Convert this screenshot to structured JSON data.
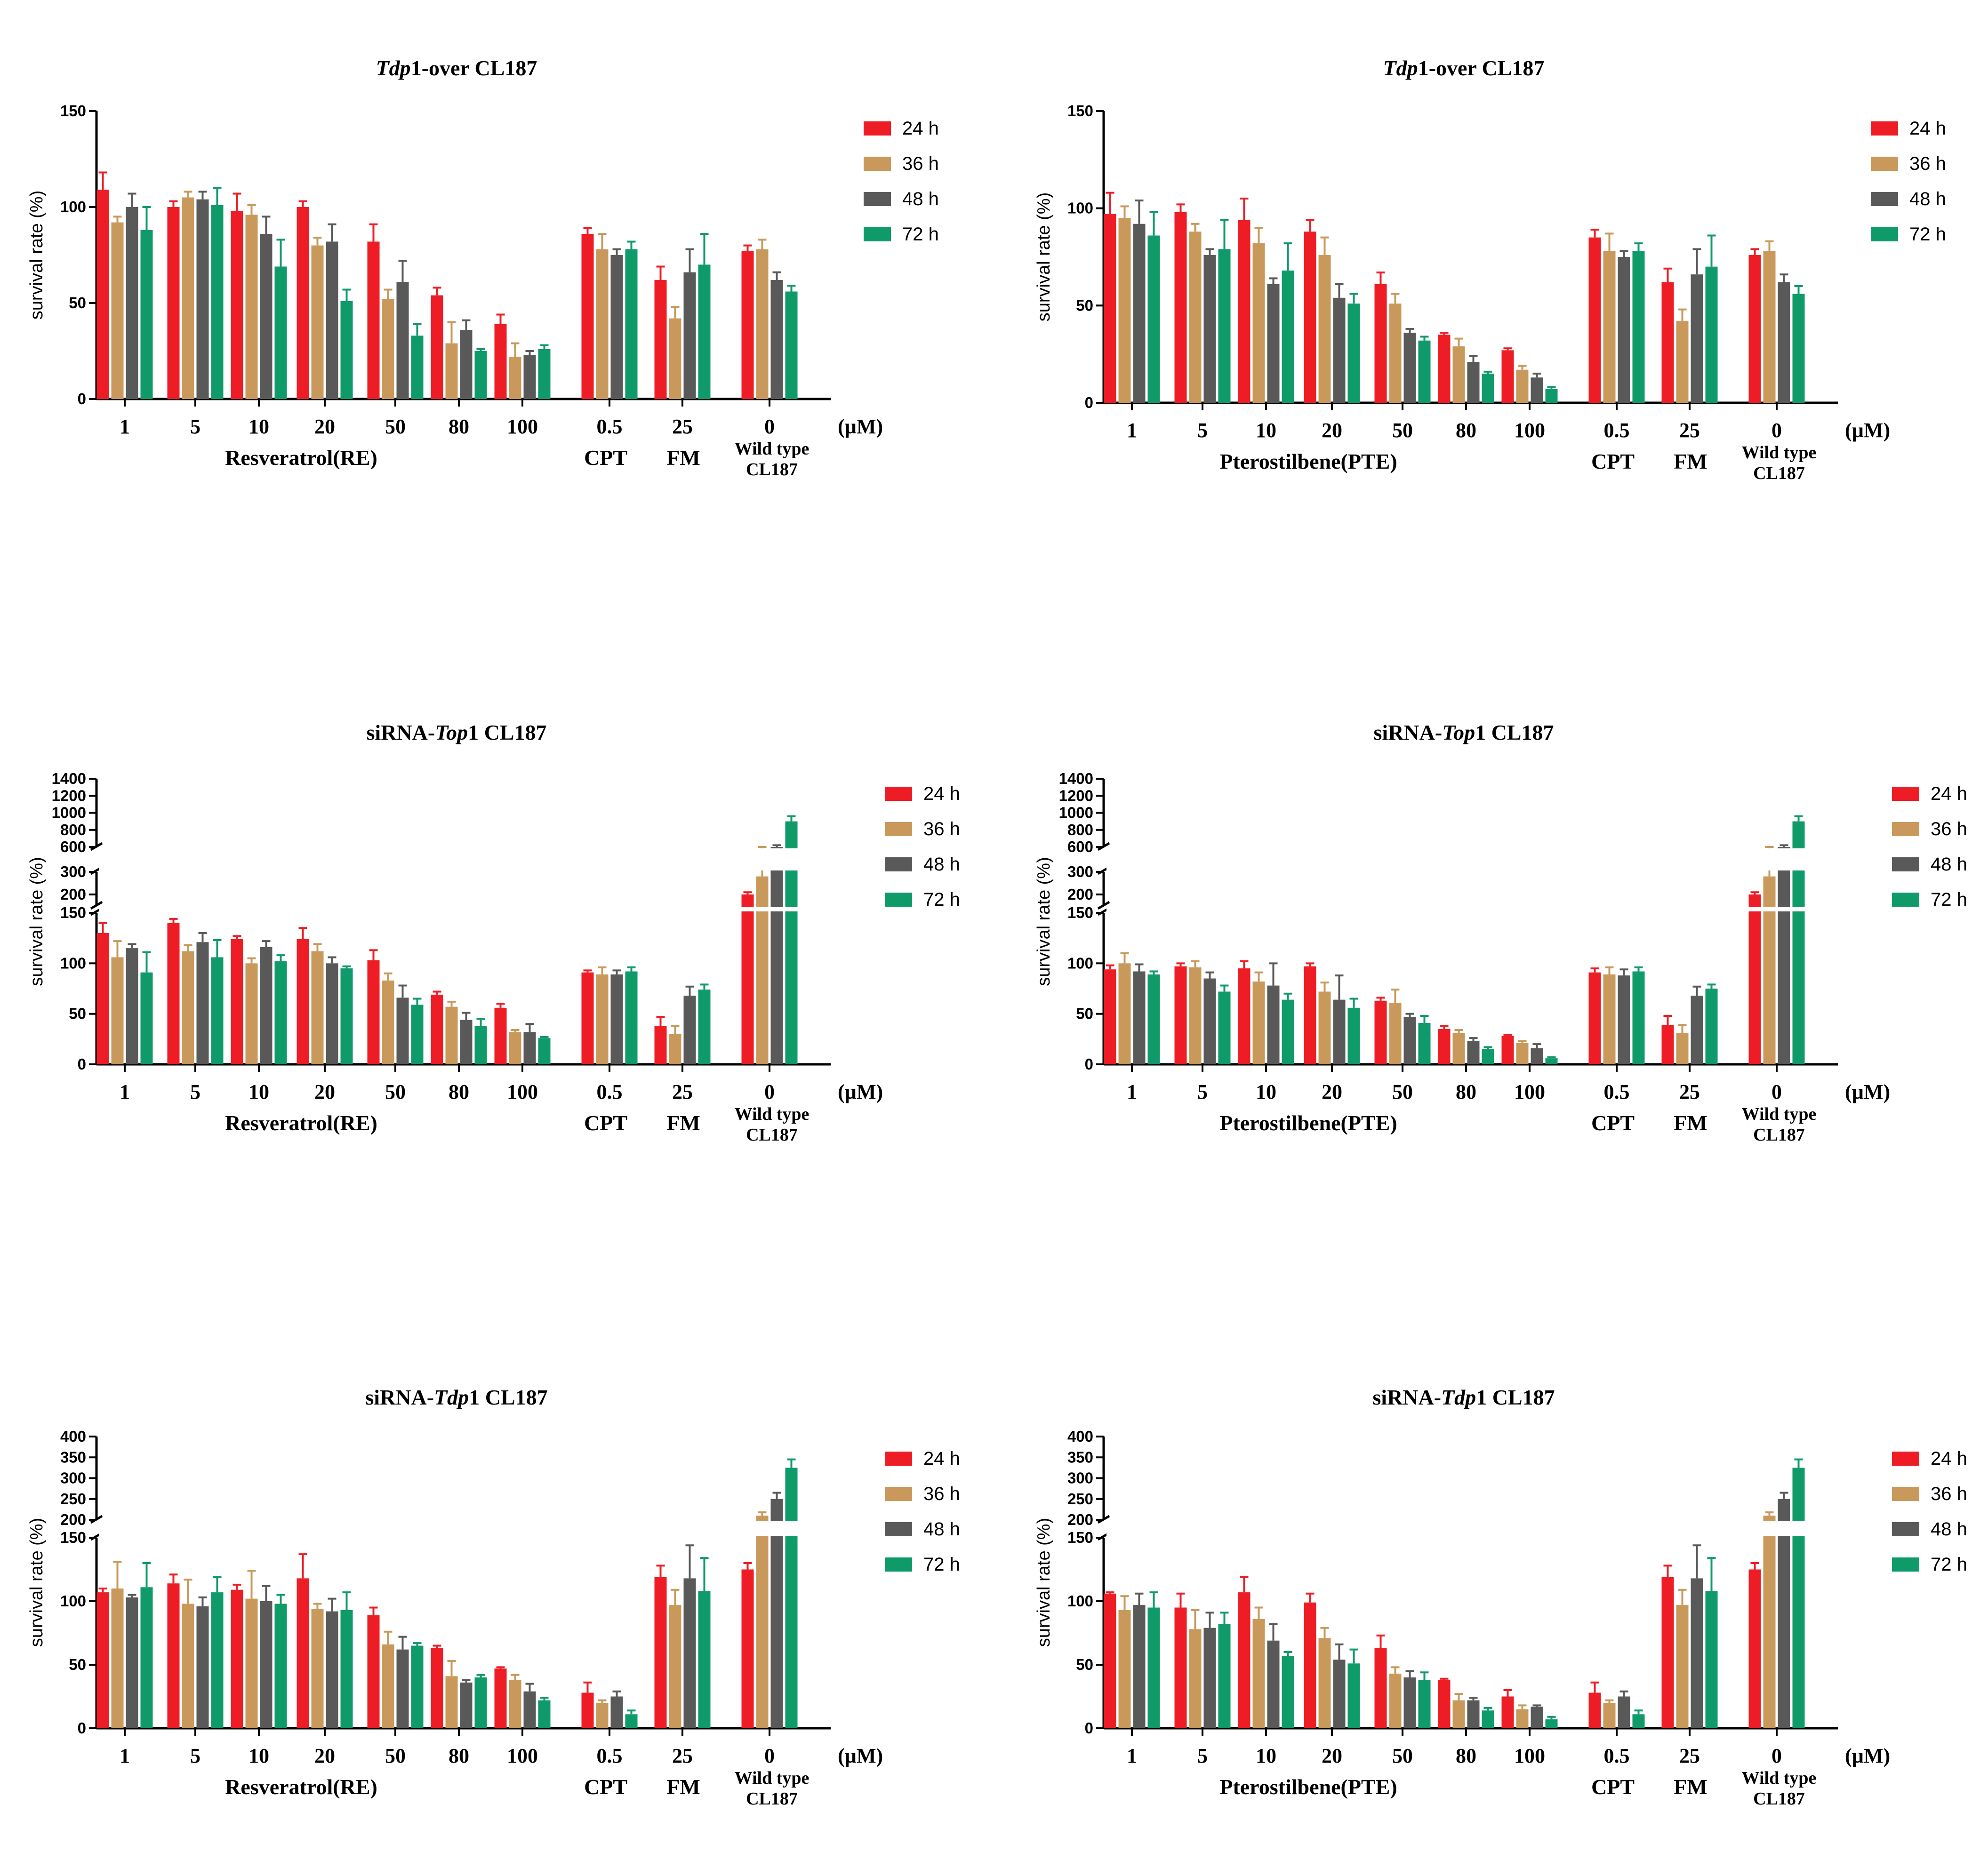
{
  "chart_data": [
    {
      "type": "bar",
      "title_prefix": "Tdp",
      "title_suffix": "1-over CL187",
      "ylabel": "survival rate (%)",
      "yticks": [
        "0",
        "50",
        "100",
        "150"
      ],
      "categories": [
        "1",
        "5",
        "10",
        "20",
        "50",
        "80",
        "100",
        "0.5",
        "25",
        "0"
      ],
      "unit_label": "(µM)",
      "group_labels": [
        "Resveratrol(RE)",
        "CPT",
        "FM",
        "Wild type",
        "CL187"
      ],
      "legend_entries": [
        "24 h",
        "36 h",
        "48 h",
        "72 h"
      ],
      "colors": [
        "#ee1c24",
        "#c8995a",
        "#595959",
        "#0f9a6a"
      ],
      "series": [
        {
          "name": "24 h",
          "values": [
            109,
            100,
            98,
            100,
            82,
            54,
            39,
            86,
            62,
            77
          ],
          "errors": [
            9,
            3,
            9,
            3,
            9,
            4,
            5,
            3,
            7,
            3
          ]
        },
        {
          "name": "36 h",
          "values": [
            92,
            105,
            96,
            80,
            52,
            29,
            22,
            78,
            42,
            78
          ],
          "errors": [
            3,
            3,
            5,
            4,
            5,
            11,
            7,
            8,
            6,
            5
          ]
        },
        {
          "name": "48 h",
          "values": [
            100,
            104,
            86,
            82,
            61,
            36,
            23,
            75,
            66,
            62
          ],
          "errors": [
            7,
            4,
            9,
            9,
            11,
            5,
            2,
            3,
            12,
            4
          ]
        },
        {
          "name": "72 h",
          "values": [
            88,
            101,
            69,
            51,
            33,
            25,
            26,
            78,
            70,
            56
          ],
          "errors": [
            12,
            9,
            14,
            6,
            6,
            1,
            2,
            4,
            16,
            3
          ]
        }
      ]
    },
    {
      "type": "bar",
      "title_prefix": "Tdp",
      "title_suffix": "1-over CL187",
      "ylabel": "survival rate (%)",
      "yticks": [
        "0",
        "50",
        "100",
        "150"
      ],
      "categories": [
        "1",
        "5",
        "10",
        "20",
        "50",
        "80",
        "100",
        "0.5",
        "25",
        "0"
      ],
      "unit_label": "(µM)",
      "group_labels": [
        "Pterostilbene(PTE)",
        "CPT",
        "FM",
        "Wild type",
        "CL187"
      ],
      "legend_entries": [
        "24 h",
        "36 h",
        "48 h",
        "72 h"
      ],
      "colors": [
        "#ee1c24",
        "#c8995a",
        "#595959",
        "#0f9a6a"
      ],
      "series": [
        {
          "name": "24 h",
          "values": [
            97,
            98,
            94,
            88,
            61,
            35,
            27,
            85,
            62,
            76
          ],
          "errors": [
            11,
            4,
            11,
            6,
            6,
            1,
            1,
            4,
            7,
            3
          ]
        },
        {
          "name": "36 h",
          "values": [
            95,
            88,
            82,
            76,
            51,
            29,
            17,
            78,
            42,
            78
          ],
          "errors": [
            6,
            4,
            8,
            9,
            5,
            4,
            2,
            9,
            6,
            5
          ]
        },
        {
          "name": "48 h",
          "values": [
            92,
            76,
            61,
            54,
            36,
            21,
            13,
            75,
            66,
            62
          ],
          "errors": [
            12,
            3,
            3,
            7,
            2,
            3,
            2,
            3,
            13,
            4
          ]
        },
        {
          "name": "72 h",
          "values": [
            86,
            79,
            68,
            51,
            32,
            15,
            7,
            78,
            70,
            56
          ],
          "errors": [
            12,
            15,
            14,
            5,
            2,
            1,
            1,
            4,
            16,
            4
          ]
        }
      ]
    },
    {
      "type": "bar",
      "title_prefix": "siRNA-",
      "title_italic": "Top",
      "title_suffix": "1 CL187",
      "ylabel": "survival rate (%)",
      "yticks": [
        "0",
        "50",
        "100",
        "150",
        "200",
        "300",
        "600",
        "800",
        "1000",
        "1200",
        "1400"
      ],
      "categories": [
        "1",
        "5",
        "10",
        "20",
        "50",
        "80",
        "100",
        "0.5",
        "25",
        "0"
      ],
      "unit_label": "(µM)",
      "group_labels": [
        "Resveratrol(RE)",
        "CPT",
        "FM",
        "Wild type",
        "CL187"
      ],
      "legend_entries": [
        "24 h",
        "36 h",
        "48 h",
        "72 h"
      ],
      "colors": [
        "#ee1c24",
        "#c8995a",
        "#595959",
        "#0f9a6a"
      ],
      "series": [
        {
          "name": "24 h",
          "values": [
            130,
            140,
            124,
            124,
            103,
            69,
            56,
            91,
            38,
            200
          ],
          "errors": [
            10,
            4,
            3,
            11,
            10,
            3,
            4,
            2,
            9,
            10
          ]
        },
        {
          "name": "36 h",
          "values": [
            106,
            112,
            100,
            112,
            83,
            57,
            32,
            89,
            30,
            280
          ],
          "errors": [
            16,
            6,
            5,
            7,
            7,
            5,
            2,
            7,
            8,
            25
          ]
        },
        {
          "name": "48 h",
          "values": [
            115,
            121,
            116,
            100,
            66,
            44,
            32,
            89,
            68,
            590
          ],
          "errors": [
            4,
            9,
            6,
            6,
            12,
            7,
            8,
            4,
            9,
            30
          ]
        },
        {
          "name": "72 h",
          "values": [
            91,
            106,
            102,
            95,
            59,
            38,
            26,
            92,
            74,
            900
          ],
          "errors": [
            20,
            17,
            6,
            2,
            6,
            7,
            1,
            4,
            5,
            60
          ]
        }
      ]
    },
    {
      "type": "bar",
      "title_prefix": "siRNA-",
      "title_italic": "Top",
      "title_suffix": "1 CL187",
      "ylabel": "survival rate (%)",
      "yticks": [
        "0",
        "50",
        "100",
        "150",
        "200",
        "300",
        "600",
        "800",
        "1000",
        "1200",
        "1400"
      ],
      "categories": [
        "1",
        "5",
        "10",
        "20",
        "50",
        "80",
        "100",
        "0.5",
        "25",
        "0"
      ],
      "unit_label": "(µM)",
      "group_labels": [
        "Pterostilbene(PTE)",
        "CPT",
        "FM",
        "Wild type",
        "CL187"
      ],
      "legend_entries": [
        "24 h",
        "36 h",
        "48 h",
        "72 h"
      ],
      "colors": [
        "#ee1c24",
        "#c8995a",
        "#595959",
        "#0f9a6a"
      ],
      "series": [
        {
          "name": "24 h",
          "values": [
            94,
            97,
            95,
            97,
            63,
            35,
            28,
            91,
            39,
            200
          ],
          "errors": [
            4,
            3,
            7,
            3,
            3,
            3,
            1,
            4,
            9,
            10
          ]
        },
        {
          "name": "36 h",
          "values": [
            100,
            96,
            82,
            72,
            61,
            31,
            21,
            89,
            31,
            280
          ],
          "errors": [
            10,
            6,
            9,
            9,
            13,
            3,
            2,
            7,
            8,
            25
          ]
        },
        {
          "name": "48 h",
          "values": [
            92,
            85,
            78,
            64,
            47,
            23,
            16,
            88,
            68,
            590
          ],
          "errors": [
            7,
            6,
            22,
            24,
            3,
            3,
            4,
            6,
            9,
            30
          ]
        },
        {
          "name": "72 h",
          "values": [
            89,
            72,
            64,
            56,
            41,
            15,
            6,
            92,
            75,
            900
          ],
          "errors": [
            3,
            6,
            6,
            9,
            7,
            2,
            1,
            4,
            4,
            60
          ]
        }
      ]
    },
    {
      "type": "bar",
      "title_prefix": "siRNA-",
      "title_italic": "Tdp",
      "title_suffix": "1 CL187",
      "ylabel": "survival rate (%)",
      "yticks": [
        "0",
        "50",
        "100",
        "150",
        "200",
        "250",
        "300",
        "350",
        "400"
      ],
      "categories": [
        "1",
        "5",
        "10",
        "20",
        "50",
        "80",
        "100",
        "0.5",
        "25",
        "0"
      ],
      "unit_label": "(µM)",
      "group_labels": [
        "Resveratrol(RE)",
        "CPT",
        "FM",
        "Wild type",
        "CL187"
      ],
      "legend_entries": [
        "24 h",
        "36 h",
        "48 h",
        "72 h"
      ],
      "colors": [
        "#ee1c24",
        "#c8995a",
        "#595959",
        "#0f9a6a"
      ],
      "series": [
        {
          "name": "24 h",
          "values": [
            107,
            114,
            109,
            118,
            89,
            63,
            47,
            28,
            119,
            125
          ],
          "errors": [
            3,
            7,
            4,
            19,
            6,
            2,
            1,
            8,
            9,
            5
          ]
        },
        {
          "name": "36 h",
          "values": [
            110,
            98,
            102,
            94,
            66,
            41,
            38,
            20,
            97,
            210
          ],
          "errors": [
            21,
            19,
            22,
            4,
            10,
            12,
            4,
            2,
            12,
            8
          ]
        },
        {
          "name": "48 h",
          "values": [
            103,
            96,
            100,
            92,
            62,
            36,
            29,
            25,
            118,
            250
          ],
          "errors": [
            2,
            7,
            12,
            10,
            10,
            2,
            6,
            4,
            26,
            15
          ]
        },
        {
          "name": "72 h",
          "values": [
            111,
            107,
            98,
            93,
            65,
            40,
            22,
            11,
            108,
            325
          ],
          "errors": [
            19,
            12,
            7,
            14,
            2,
            2,
            2,
            3,
            26,
            20
          ]
        }
      ]
    },
    {
      "type": "bar",
      "title_prefix": "siRNA-",
      "title_italic": "Tdp",
      "title_suffix": "1 CL187",
      "ylabel": "survival rate (%)",
      "yticks": [
        "0",
        "50",
        "100",
        "150",
        "200",
        "250",
        "300",
        "350",
        "400"
      ],
      "categories": [
        "1",
        "5",
        "10",
        "20",
        "50",
        "80",
        "100",
        "0.5",
        "25",
        "0"
      ],
      "unit_label": "(µM)",
      "group_labels": [
        "Pterostilbene(PTE)",
        "CPT",
        "FM",
        "Wild type",
        "CL187"
      ],
      "legend_entries": [
        "24 h",
        "36 h",
        "48 h",
        "72 h"
      ],
      "colors": [
        "#ee1c24",
        "#c8995a",
        "#595959",
        "#0f9a6a"
      ],
      "series": [
        {
          "name": "24 h",
          "values": [
            106,
            95,
            107,
            99,
            63,
            38,
            25,
            28,
            119,
            125
          ],
          "errors": [
            1,
            11,
            12,
            7,
            10,
            1,
            5,
            8,
            9,
            5
          ]
        },
        {
          "name": "36 h",
          "values": [
            93,
            78,
            86,
            71,
            43,
            22,
            15,
            20,
            97,
            210
          ],
          "errors": [
            11,
            15,
            9,
            8,
            5,
            5,
            3,
            2,
            12,
            8
          ]
        },
        {
          "name": "48 h",
          "values": [
            97,
            79,
            69,
            54,
            40,
            22,
            17,
            25,
            118,
            250
          ],
          "errors": [
            9,
            12,
            13,
            12,
            5,
            2,
            1,
            4,
            26,
            15
          ]
        },
        {
          "name": "72 h",
          "values": [
            95,
            82,
            57,
            51,
            38,
            14,
            7,
            11,
            108,
            325
          ],
          "errors": [
            12,
            9,
            3,
            11,
            6,
            2,
            2,
            3,
            26,
            20
          ]
        }
      ]
    }
  ]
}
